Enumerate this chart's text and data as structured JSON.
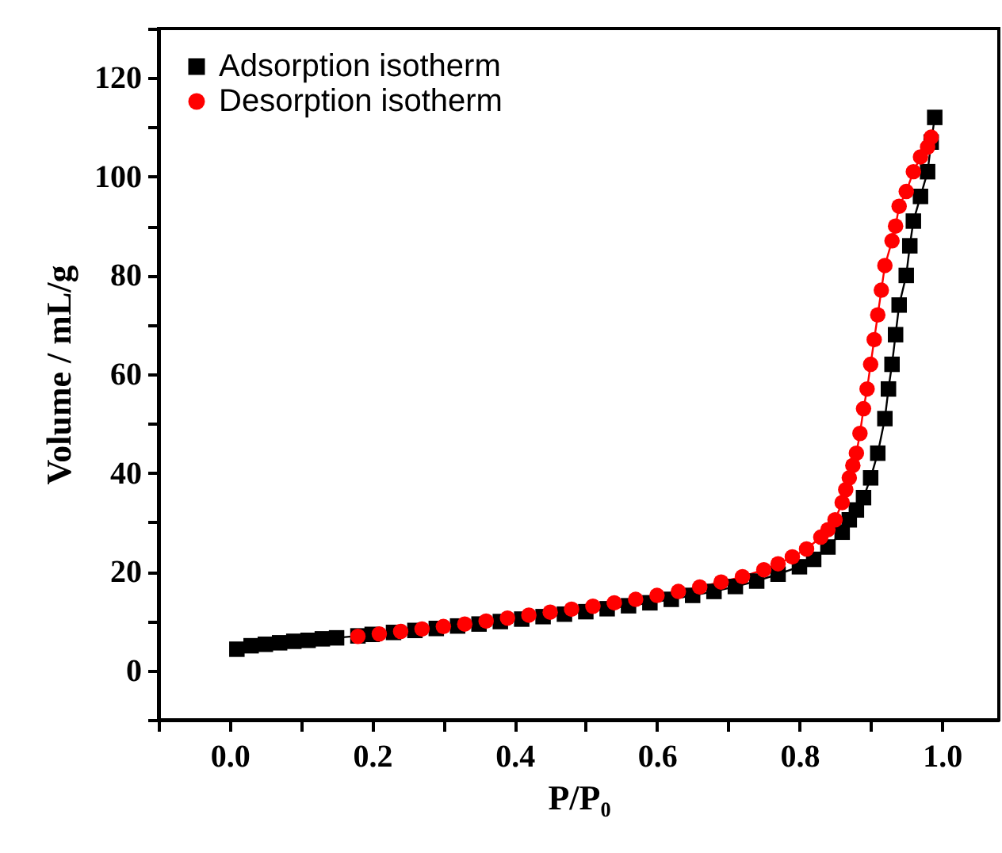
{
  "chart_data": {
    "type": "line",
    "xlabel": "P/P₀",
    "ylabel": "Volume / mL/g",
    "xlim": [
      -0.1,
      1.08
    ],
    "ylim": [
      -10,
      130
    ],
    "xticks": [
      {
        "value": 0,
        "label": "0.0"
      },
      {
        "value": 0.1,
        "label": null
      },
      0.2,
      {
        "value": 0.3,
        "label": null
      },
      0.4,
      {
        "value": 0.5,
        "label": null
      },
      0.6,
      {
        "value": 0.7,
        "label": null
      },
      0.8,
      {
        "value": 0.9,
        "label": null
      },
      {
        "value": 1.0,
        "label": "1.0"
      },
      {
        "value": -0.1,
        "label": null
      }
    ],
    "yticks": [
      {
        "value": -10,
        "label": null
      },
      0,
      {
        "value": 10,
        "label": null
      },
      20,
      {
        "value": 30,
        "label": null
      },
      40,
      {
        "value": 50,
        "label": null
      },
      60,
      {
        "value": 70,
        "label": null
      },
      80,
      {
        "value": 90,
        "label": null
      },
      100,
      {
        "value": 110,
        "label": null
      },
      120,
      {
        "value": 130,
        "label": null
      }
    ],
    "grid": false,
    "legend": "top left",
    "series": [
      {
        "name": "Adsorption isotherm",
        "color": "#000000",
        "marker": "square",
        "x": [
          0.01,
          0.03,
          0.05,
          0.07,
          0.09,
          0.11,
          0.13,
          0.15,
          0.18,
          0.2,
          0.23,
          0.26,
          0.29,
          0.32,
          0.35,
          0.38,
          0.41,
          0.44,
          0.47,
          0.5,
          0.53,
          0.56,
          0.59,
          0.62,
          0.65,
          0.68,
          0.71,
          0.74,
          0.77,
          0.8,
          0.82,
          0.84,
          0.86,
          0.87,
          0.88,
          0.89,
          0.9,
          0.91,
          0.92,
          0.925,
          0.93,
          0.935,
          0.94,
          0.95,
          0.955,
          0.96,
          0.97,
          0.98,
          0.985,
          0.99
        ],
        "values": [
          4.3,
          5.0,
          5.3,
          5.6,
          5.9,
          6.1,
          6.4,
          6.6,
          7.0,
          7.3,
          7.7,
          8.1,
          8.5,
          9.0,
          9.4,
          9.9,
          10.4,
          10.9,
          11.4,
          11.9,
          12.5,
          13.1,
          13.7,
          14.4,
          15.2,
          16.0,
          17.0,
          18.1,
          19.5,
          21.0,
          22.5,
          25.0,
          28.0,
          30.5,
          32.5,
          35.0,
          39.0,
          44.0,
          51.0,
          57.0,
          62.0,
          68.0,
          74.0,
          80.0,
          86.0,
          91.0,
          96.0,
          101.0,
          107.0,
          112.0
        ]
      },
      {
        "name": "Desorption isotherm",
        "color": "#ff0000",
        "marker": "circle",
        "x": [
          0.18,
          0.21,
          0.24,
          0.27,
          0.3,
          0.33,
          0.36,
          0.39,
          0.42,
          0.45,
          0.48,
          0.51,
          0.54,
          0.57,
          0.6,
          0.63,
          0.66,
          0.69,
          0.72,
          0.75,
          0.77,
          0.79,
          0.81,
          0.83,
          0.84,
          0.85,
          0.86,
          0.865,
          0.87,
          0.875,
          0.88,
          0.885,
          0.89,
          0.895,
          0.9,
          0.905,
          0.91,
          0.915,
          0.92,
          0.93,
          0.935,
          0.94,
          0.95,
          0.96,
          0.97,
          0.98,
          0.985
        ],
        "values": [
          6.9,
          7.4,
          7.9,
          8.4,
          8.9,
          9.4,
          10.0,
          10.6,
          11.2,
          11.8,
          12.4,
          13.0,
          13.7,
          14.4,
          15.2,
          16.0,
          16.9,
          17.9,
          19.0,
          20.4,
          21.6,
          23.0,
          24.6,
          27.0,
          28.5,
          30.5,
          34.0,
          36.6,
          39.0,
          41.5,
          44.0,
          48.0,
          53.0,
          57.0,
          62.0,
          67.0,
          72.0,
          77.0,
          82.0,
          87.0,
          90.0,
          94.0,
          97.0,
          101.0,
          104.0,
          106.0,
          108.0
        ]
      }
    ]
  }
}
